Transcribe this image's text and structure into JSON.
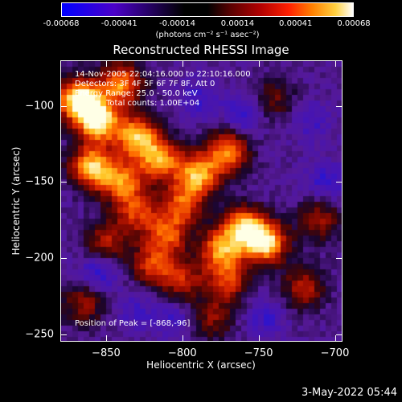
{
  "chart_data": {
    "type": "heatmap",
    "title": "Reconstructed RHESSI Image",
    "xlabel": "Heliocentric X (arcsec)",
    "ylabel": "Heliocentric Y (arcsec)",
    "xlim": [
      -880,
      -695
    ],
    "ylim": [
      -255,
      -70
    ],
    "x_ticks": [
      "-850",
      "-800",
      "-750",
      "-700"
    ],
    "x_tick_values": [
      -850,
      -800,
      -750,
      -700
    ],
    "y_ticks": [
      "-100",
      "-150",
      "-200",
      "-250"
    ],
    "y_tick_values": [
      -100,
      -150,
      -200,
      -250
    ],
    "colorbar": {
      "ticks": [
        "-0.00068",
        "-0.00041",
        "-0.00014",
        "0.00014",
        "0.00041",
        "0.00068"
      ],
      "tick_values": [
        -0.00068,
        -0.00041,
        -0.00014,
        0.00014,
        0.00041,
        0.00068
      ],
      "units": "(photons cm⁻² s⁻¹ asec⁻²)",
      "colors": [
        "#0000ff",
        "#4b00c8",
        "#000000",
        "#5a0000",
        "#b00000",
        "#ff2000",
        "#ff8000",
        "#ffd040",
        "#ffffff"
      ]
    },
    "annotations": {
      "time_range": "14-Nov-2005 22:04:16.000 to 22:10:16.000",
      "detectors": "Detectors: 3F 4F 5F 6F 7F 8F, Att 0",
      "energy_range": "Energy Range: 25.0 - 50.0 keV",
      "counts": "Total counts: 1.00E+04",
      "peak": "Position of Peak = [-868,-96]"
    },
    "peak_position": [
      -868,
      -96
    ],
    "bright_regions": [
      {
        "x": -868,
        "y": -96,
        "level": 1.0
      },
      {
        "x": -855,
        "y": -110,
        "level": 0.85
      },
      {
        "x": -840,
        "y": -85,
        "level": 0.7
      },
      {
        "x": -830,
        "y": -120,
        "level": 0.75
      },
      {
        "x": -860,
        "y": -140,
        "level": 0.8
      },
      {
        "x": -840,
        "y": -150,
        "level": 0.65
      },
      {
        "x": -815,
        "y": -135,
        "level": 0.7
      },
      {
        "x": -790,
        "y": -145,
        "level": 0.75
      },
      {
        "x": -770,
        "y": -130,
        "level": 0.7
      },
      {
        "x": -800,
        "y": -165,
        "level": 0.55
      },
      {
        "x": -760,
        "y": -180,
        "level": 0.75
      },
      {
        "x": -745,
        "y": -190,
        "level": 0.85
      },
      {
        "x": -775,
        "y": -195,
        "level": 0.65
      },
      {
        "x": -810,
        "y": -185,
        "level": 0.55
      },
      {
        "x": -830,
        "y": -170,
        "level": 0.5
      },
      {
        "x": -820,
        "y": -205,
        "level": 0.5
      },
      {
        "x": -850,
        "y": -190,
        "level": 0.45
      },
      {
        "x": -800,
        "y": -215,
        "level": 0.45
      },
      {
        "x": -770,
        "y": -215,
        "level": 0.5
      },
      {
        "x": -720,
        "y": -220,
        "level": 0.45
      },
      {
        "x": -710,
        "y": -175,
        "level": 0.4
      },
      {
        "x": -865,
        "y": -230,
        "level": 0.4
      },
      {
        "x": -780,
        "y": -240,
        "level": 0.35
      },
      {
        "x": -740,
        "y": -95,
        "level": 0.3
      }
    ],
    "dark_regions": [
      {
        "x": -855,
        "y": -210,
        "level": 0.9
      },
      {
        "x": -760,
        "y": -105,
        "level": 0.8
      },
      {
        "x": -705,
        "y": -150,
        "level": 0.7
      },
      {
        "x": -745,
        "y": -240,
        "level": 0.6
      },
      {
        "x": -790,
        "y": -95,
        "level": 0.6
      },
      {
        "x": -805,
        "y": -240,
        "level": 0.55
      },
      {
        "x": -830,
        "y": -235,
        "level": 0.5
      },
      {
        "x": -715,
        "y": -110,
        "level": 0.5
      }
    ]
  },
  "footer": {
    "date": "3-May-2022 05:44"
  }
}
